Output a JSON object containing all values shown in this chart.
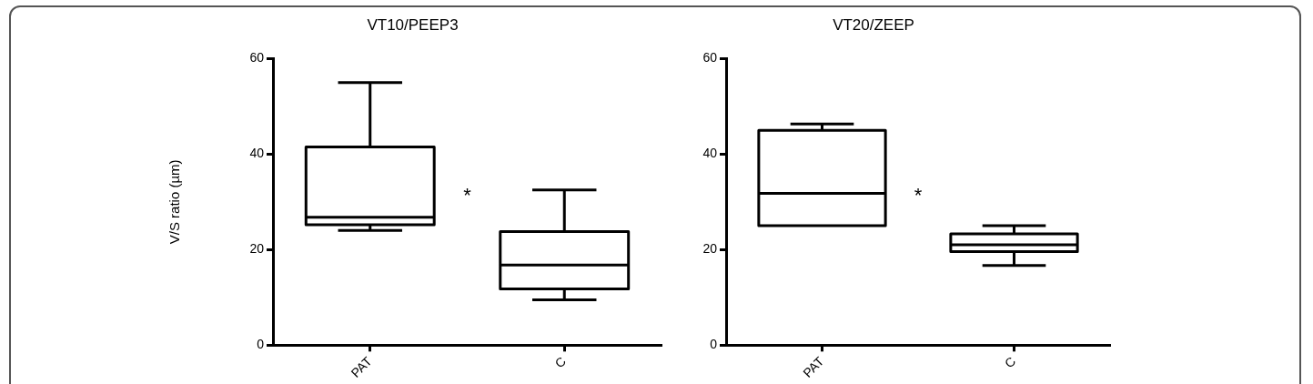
{
  "chart_data": [
    {
      "type": "box",
      "title": "VT10/PEEP3",
      "ylabel": "V/S ratio (µm)",
      "categories": [
        "PAT",
        "C"
      ],
      "boxes": [
        {
          "low": 24,
          "q1": 25.2,
          "median": 26.8,
          "q3": 41.5,
          "high": 55
        },
        {
          "low": 9.5,
          "q1": 11.8,
          "median": 16.8,
          "q3": 23.8,
          "high": 32.5
        }
      ],
      "ylim": [
        0,
        60
      ],
      "yticks": [
        0,
        20,
        40,
        60
      ],
      "annotations": [
        "*"
      ]
    },
    {
      "type": "box",
      "title": "VT20/ZEEP",
      "categories": [
        "PAT",
        "C"
      ],
      "boxes": [
        {
          "low": 25,
          "q1": 25,
          "median": 31.8,
          "q3": 45,
          "high": 46.3
        },
        {
          "low": 16.7,
          "q1": 19.6,
          "median": 21,
          "q3": 23.3,
          "high": 25
        }
      ],
      "ylim": [
        0,
        60
      ],
      "yticks": [
        0,
        20,
        40,
        60
      ],
      "annotations": [
        "*"
      ]
    }
  ]
}
